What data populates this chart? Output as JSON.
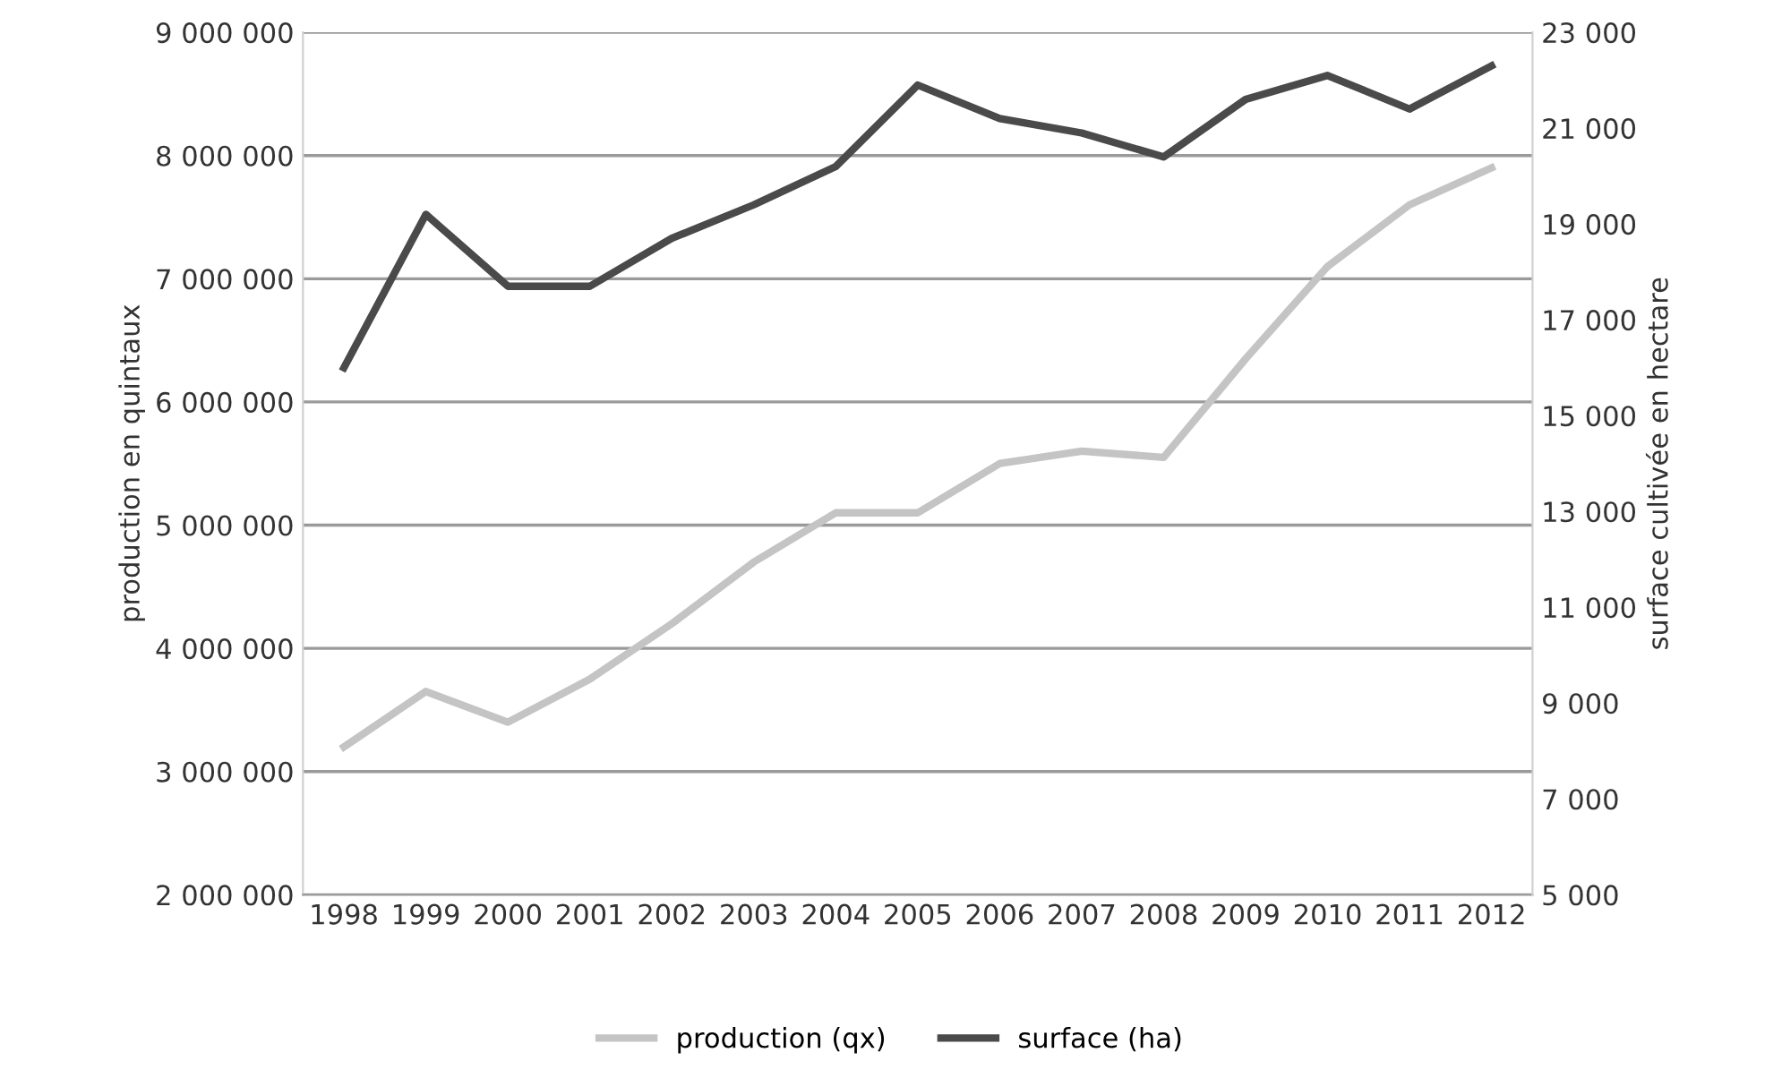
{
  "chart_data": {
    "type": "line",
    "ylabel": "production en quintaux",
    "y2label": "surface cultivée en hectare",
    "categories": [
      "1998",
      "1999",
      "2000",
      "2001",
      "2002",
      "2003",
      "2004",
      "2005",
      "2006",
      "2007",
      "2008",
      "2009",
      "2010",
      "2011",
      "2012"
    ],
    "series": [
      {
        "name": "production (qx)",
        "color": "#c4c4c4",
        "values": [
          3200000,
          3650000,
          3400000,
          3750000,
          4200000,
          4700000,
          5100000,
          5100000,
          5500000,
          5600000,
          5550000,
          6350000,
          7100000,
          7600000,
          7900000
        ]
      },
      {
        "name": "surface (ha)",
        "color": "#4a4a4a",
        "axis": "y2",
        "values": [
          16000,
          19200,
          17700,
          17700,
          18700,
          19400,
          20200,
          21900,
          21200,
          20900,
          20400,
          21600,
          22100,
          21400,
          22300
        ]
      }
    ],
    "ylim": [
      2000000,
      9000000
    ],
    "yticks": [
      {
        "value": 2000000,
        "label": "2 000 000"
      },
      {
        "value": 3000000,
        "label": "3 000 000"
      },
      {
        "value": 4000000,
        "label": "4 000 000"
      },
      {
        "value": 5000000,
        "label": "5 000 000"
      },
      {
        "value": 6000000,
        "label": "6 000 000"
      },
      {
        "value": 7000000,
        "label": "7 000 000"
      },
      {
        "value": 8000000,
        "label": "8 000 000"
      },
      {
        "value": 9000000,
        "label": "9 000 000"
      }
    ],
    "y2lim": [
      5000,
      23000
    ],
    "y2ticks": [
      {
        "value": 5000,
        "label": "5 000"
      },
      {
        "value": 7000,
        "label": "7 000"
      },
      {
        "value": 9000,
        "label": "9 000"
      },
      {
        "value": 11000,
        "label": "11 000"
      },
      {
        "value": 13000,
        "label": "13 000"
      },
      {
        "value": 15000,
        "label": "15 000"
      },
      {
        "value": 17000,
        "label": "17 000"
      },
      {
        "value": 19000,
        "label": "19 000"
      },
      {
        "value": 21000,
        "label": "21 000"
      },
      {
        "value": 23000,
        "label": "23 000"
      }
    ],
    "grid": "y",
    "legend": "bottom",
    "line_style": "solid",
    "marker": "none"
  }
}
